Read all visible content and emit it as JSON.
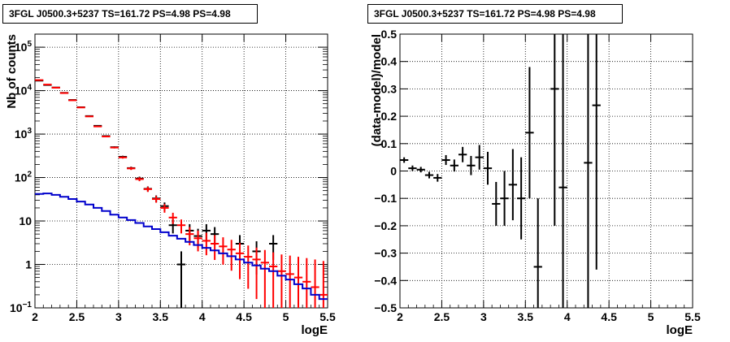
{
  "chart_data": [
    {
      "type": "line",
      "title": "3FGL J0500.3+5237 TS=161.72 PS=4.98 PS=4.98",
      "xlabel": "logE",
      "ylabel": "Nb of counts",
      "xlim": [
        2,
        5.5
      ],
      "ylim": [
        0.1,
        200000
      ],
      "yscale": "log",
      "grid": true,
      "x_ticks": [
        "2",
        "2.5",
        "3",
        "3.5",
        "4",
        "4.5",
        "5",
        "5.5"
      ],
      "y_ticks": [
        "10^-1",
        "1",
        "10",
        "10^2",
        "10^3",
        "10^4",
        "10^5"
      ],
      "bin_width": 0.1,
      "series": [
        {
          "color": "#000000",
          "style": "points with error bars",
          "x": [
            2.05,
            2.15,
            2.25,
            2.35,
            2.45,
            2.55,
            2.65,
            2.75,
            2.85,
            2.95,
            3.05,
            3.15,
            3.25,
            3.35,
            3.45,
            3.55,
            3.65,
            3.75,
            3.85,
            3.95,
            4.05,
            4.15,
            4.25,
            4.35,
            4.45,
            4.55,
            4.65,
            4.75,
            4.85,
            4.95,
            5.05
          ],
          "y": [
            17000,
            13500,
            11800,
            8900,
            6100,
            4150,
            2600,
            1550,
            900,
            500,
            300,
            165,
            95,
            55,
            33,
            22,
            8,
            1,
            6,
            4.5,
            6,
            5,
            null,
            null,
            3,
            null,
            2,
            null,
            3,
            null,
            null
          ]
        },
        {
          "color": "#ff0000",
          "style": "points with error bars",
          "x": [
            2.05,
            2.15,
            2.25,
            2.35,
            2.45,
            2.55,
            2.65,
            2.75,
            2.85,
            2.95,
            3.05,
            3.15,
            3.25,
            3.35,
            3.45,
            3.55,
            3.65,
            3.75,
            3.85,
            3.95,
            4.05,
            4.15,
            4.25,
            4.35,
            4.45,
            4.55,
            4.65,
            4.75,
            4.85,
            4.95,
            5.05,
            5.15,
            5.25,
            5.35,
            5.45
          ],
          "y": [
            17500,
            13800,
            11700,
            8800,
            6000,
            4100,
            2550,
            1500,
            880,
            490,
            290,
            162,
            92,
            54,
            32,
            20,
            12,
            8,
            5,
            4,
            3.5,
            3,
            2.6,
            2.2,
            1.8,
            1.5,
            1.3,
            1.1,
            0.9,
            0.7,
            0.6,
            0.5,
            0.4,
            0.3,
            0.2
          ]
        },
        {
          "color": "#0000cc",
          "style": "histogram",
          "x": [
            2.05,
            2.15,
            2.25,
            2.35,
            2.45,
            2.55,
            2.65,
            2.75,
            2.85,
            2.95,
            3.05,
            3.15,
            3.25,
            3.35,
            3.45,
            3.55,
            3.65,
            3.75,
            3.85,
            3.95,
            4.05,
            4.15,
            4.25,
            4.35,
            4.45,
            4.55,
            4.65,
            4.75,
            4.85,
            4.95,
            5.05,
            5.15,
            5.25,
            5.35,
            5.45
          ],
          "y": [
            42,
            43,
            40,
            36,
            32,
            28,
            24,
            20,
            17,
            14,
            12,
            10.5,
            9,
            7.5,
            6.5,
            5.5,
            4.6,
            3.9,
            3.3,
            2.8,
            2.4,
            2.1,
            1.8,
            1.55,
            1.3,
            1.1,
            0.95,
            0.8,
            0.7,
            0.55,
            0.45,
            0.35,
            0.28,
            0.2,
            0.16
          ]
        }
      ]
    },
    {
      "type": "scatter",
      "title": "3FGL J0500.3+5237 TS=161.72 PS=4.98 PS=4.98",
      "xlabel": "logE",
      "ylabel": "(data-model)/model",
      "xlim": [
        2,
        5.5
      ],
      "ylim": [
        -0.5,
        0.5
      ],
      "grid": true,
      "x_ticks": [
        "2",
        "2.5",
        "3",
        "3.5",
        "4",
        "4.5",
        "5",
        "5.5"
      ],
      "y_ticks": [
        "−0.5",
        "−0.4",
        "−0.3",
        "−0.2",
        "−0.1",
        "0",
        "0.1",
        "0.2",
        "0.3",
        "0.4",
        "0.5"
      ],
      "bin_width": 0.1,
      "series": [
        {
          "color": "#000000",
          "style": "points with error bars",
          "x": [
            2.05,
            2.15,
            2.25,
            2.35,
            2.45,
            2.55,
            2.65,
            2.75,
            2.85,
            2.95,
            3.05,
            3.15,
            3.25,
            3.35,
            3.45,
            3.55,
            3.65,
            3.85,
            3.95,
            4.25,
            4.35
          ],
          "y": [
            0.04,
            0.01,
            0.005,
            -0.015,
            -0.025,
            0.04,
            0.02,
            0.06,
            0.02,
            0.05,
            0.01,
            -0.12,
            -0.1,
            -0.05,
            -0.1,
            0.14,
            -0.35,
            0.3,
            -0.06,
            0.03,
            0.24
          ],
          "yerr": [
            0.01,
            0.01,
            0.01,
            0.012,
            0.014,
            0.018,
            0.022,
            0.028,
            0.035,
            0.045,
            0.06,
            0.08,
            0.1,
            0.13,
            0.15,
            0.24,
            0.25,
            0.5,
            0.6,
            0.6,
            0.6
          ]
        }
      ]
    }
  ]
}
